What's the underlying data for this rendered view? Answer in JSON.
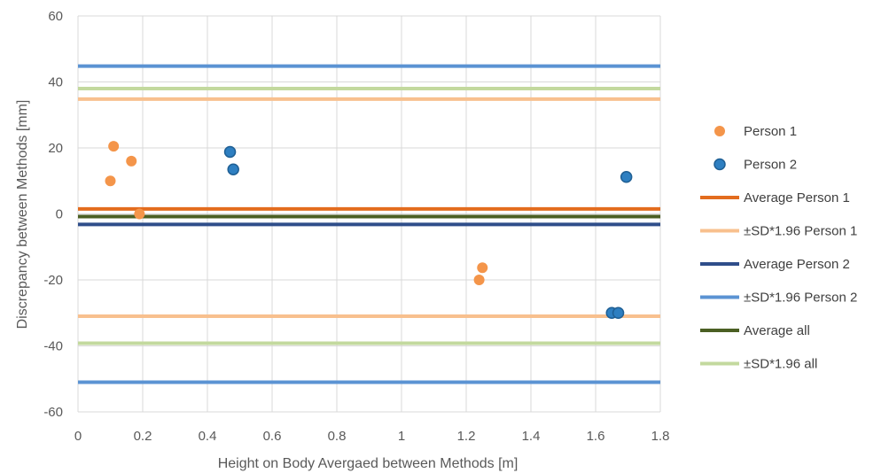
{
  "chart_data": {
    "type": "scatter",
    "title": "",
    "xlabel": "Height on Body Avergaed between Methods [m]",
    "ylabel": "Discrepancy between Methods [mm]",
    "xlim": [
      0,
      1.8
    ],
    "ylim": [
      -60,
      60
    ],
    "xticks": [
      0,
      0.2,
      0.4,
      0.6,
      0.8,
      1,
      1.2,
      1.4,
      1.6,
      1.8
    ],
    "xtick_labels": [
      "0",
      "0.2",
      "0.4",
      "0.6",
      "0.8",
      "1",
      "1.2",
      "1.4",
      "1.6",
      "1.8"
    ],
    "yticks": [
      -60,
      -40,
      -20,
      0,
      20,
      40,
      60
    ],
    "ytick_labels": [
      "-60",
      "-40",
      "-20",
      "0",
      "20",
      "40",
      "60"
    ],
    "grid": true,
    "legend_position": "right",
    "series": [
      {
        "name": "Person 1",
        "kind": "scatter",
        "color": "#F4954A",
        "points": [
          [
            0.1,
            10
          ],
          [
            0.11,
            20.5
          ],
          [
            0.165,
            16
          ],
          [
            0.19,
            0
          ],
          [
            1.24,
            -20
          ],
          [
            1.25,
            -16.3
          ]
        ]
      },
      {
        "name": "Person 2",
        "kind": "scatter",
        "color": "#2E7FC1",
        "edge": "#1F5F94",
        "points": [
          [
            0.47,
            18.8
          ],
          [
            0.48,
            13.5
          ],
          [
            1.65,
            -30
          ],
          [
            1.67,
            -30
          ],
          [
            1.695,
            11.2
          ]
        ]
      },
      {
        "name": "Average Person 1",
        "kind": "hline",
        "color": "#E36C1E",
        "y": [
          1.5
        ]
      },
      {
        "name": "±SD*1.96 Person 1",
        "kind": "hline",
        "color": "#F8C08E",
        "y": [
          34.8,
          -31
        ]
      },
      {
        "name": "Average Person 2",
        "kind": "hline",
        "color": "#2F4E8A",
        "y": [
          -3.2
        ]
      },
      {
        "name": "±SD*1.96 Person 2",
        "kind": "hline",
        "color": "#5B93D3",
        "y": [
          44.8,
          -51
        ]
      },
      {
        "name": "Average all",
        "kind": "hline",
        "color": "#4B5F23",
        "y": [
          -0.8
        ]
      },
      {
        "name": "±SD*1.96 all",
        "kind": "hline",
        "color": "#C3D99E",
        "y": [
          38,
          -39.2
        ]
      }
    ]
  }
}
